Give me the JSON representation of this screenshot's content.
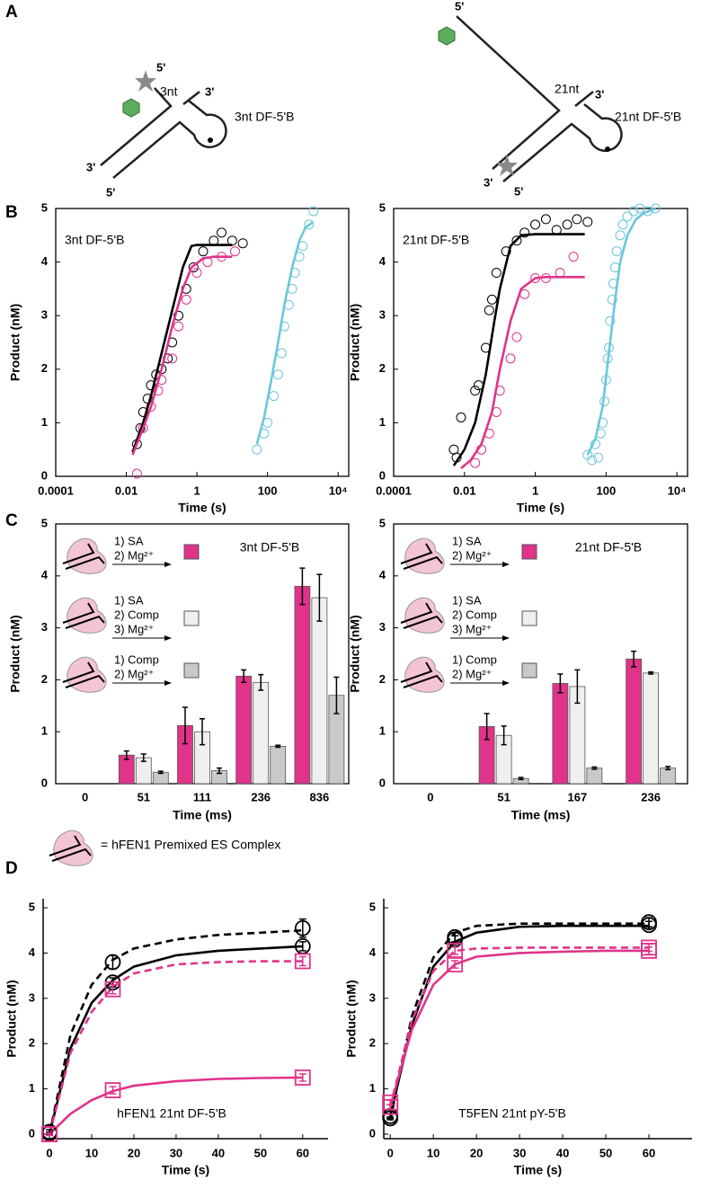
{
  "panel_labels": [
    "A",
    "B",
    "C",
    "D"
  ],
  "diagrams": [
    {
      "labels": [
        "5'",
        "3nt",
        "3'",
        "3nt DF-5'B",
        "3'",
        "5'"
      ]
    },
    {
      "labels": [
        "5'",
        "21nt",
        "3'",
        "21nt DF-5'B",
        "3'",
        "5'"
      ]
    }
  ],
  "footnote": "= hFEN1 Premixed ES Complex",
  "chart_data": [
    {
      "type": "scatter",
      "xscale": "log",
      "annotation": "3nt DF-5'B",
      "xlabel": "Time (s)",
      "ylabel": "Product (nM)",
      "xlim": [
        0.0001,
        20000
      ],
      "ylim": [
        0,
        5
      ],
      "xticks": [
        0.0001,
        0.01,
        1,
        100,
        {
          "value": 10000,
          "label": "10⁴"
        }
      ],
      "yticks": [
        0,
        1,
        2,
        3,
        4,
        5
      ],
      "series": [
        {
          "mode": "markers",
          "marker": "circle",
          "color": "#000000",
          "x": [
            0.02,
            0.025,
            0.03,
            0.04,
            0.05,
            0.07,
            0.1,
            0.15,
            0.2,
            0.3,
            0.5,
            0.8,
            1.5,
            3,
            5,
            10,
            20
          ],
          "values": [
            0.6,
            0.9,
            1.2,
            1.45,
            1.7,
            1.9,
            2.0,
            2.2,
            2.5,
            3.0,
            3.5,
            3.9,
            4.2,
            4.4,
            4.55,
            4.4,
            4.35
          ]
        },
        {
          "mode": "markers",
          "marker": "circle",
          "color": "#e0338a",
          "x": [
            0.02,
            0.03,
            0.05,
            0.08,
            0.1,
            0.2,
            0.3,
            0.5,
            1,
            2,
            5,
            12
          ],
          "values": [
            0.05,
            0.9,
            1.3,
            1.6,
            1.8,
            2.2,
            2.8,
            3.3,
            3.8,
            4.0,
            4.1,
            4.2
          ]
        },
        {
          "mode": "markers",
          "marker": "circle",
          "color": "#6cc6dc",
          "x": [
            50,
            80,
            100,
            150,
            200,
            250,
            300,
            400,
            500,
            600,
            800,
            1000,
            1500,
            2000
          ],
          "values": [
            0.5,
            0.8,
            1.0,
            1.5,
            1.9,
            2.3,
            2.8,
            3.2,
            3.5,
            3.8,
            4.1,
            4.3,
            4.7,
            4.95
          ]
        },
        {
          "mode": "line",
          "color": "#000000",
          "x": [
            0.015,
            0.03,
            0.05,
            0.1,
            0.2,
            0.4,
            0.7,
            1,
            2,
            10
          ],
          "values": [
            0.45,
            1.0,
            1.5,
            2.3,
            3.1,
            3.9,
            4.3,
            4.32,
            4.32,
            4.32
          ]
        },
        {
          "mode": "line",
          "color": "#e0338a",
          "x": [
            0.015,
            0.03,
            0.05,
            0.1,
            0.2,
            0.4,
            0.7,
            1.5,
            3,
            10
          ],
          "values": [
            0.4,
            0.9,
            1.3,
            2.0,
            2.8,
            3.5,
            3.9,
            4.07,
            4.1,
            4.1
          ]
        },
        {
          "mode": "line",
          "color": "#6cc6dc",
          "x": [
            50,
            80,
            120,
            200,
            300,
            500,
            800,
            1200,
            2000
          ],
          "values": [
            0.6,
            1.1,
            1.7,
            2.5,
            3.2,
            3.9,
            4.4,
            4.65,
            4.75
          ]
        }
      ]
    },
    {
      "type": "scatter",
      "xscale": "log",
      "annotation": "21nt DF-5'B",
      "xlabel": "Time (s)",
      "ylabel": "Product (nM)",
      "xlim": [
        0.0001,
        20000
      ],
      "ylim": [
        0,
        5
      ],
      "xticks": [
        0.0001,
        0.01,
        1,
        100,
        {
          "value": 10000,
          "label": "10⁴"
        }
      ],
      "yticks": [
        0,
        1,
        2,
        3,
        4,
        5
      ],
      "series": [
        {
          "mode": "markers",
          "marker": "circle",
          "color": "#000000",
          "x": [
            0.005,
            0.006,
            0.008,
            0.02,
            0.025,
            0.04,
            0.05,
            0.06,
            0.08,
            0.15,
            0.3,
            0.5,
            1,
            2,
            4,
            8,
            15,
            30
          ],
          "values": [
            0.5,
            0.35,
            1.1,
            1.6,
            1.7,
            2.4,
            3.1,
            3.3,
            3.8,
            4.2,
            4.4,
            4.55,
            4.7,
            4.8,
            4.6,
            4.7,
            4.8,
            4.75
          ]
        },
        {
          "mode": "markers",
          "marker": "circle",
          "color": "#e0338a",
          "x": [
            0.02,
            0.03,
            0.05,
            0.08,
            0.1,
            0.2,
            0.3,
            0.5,
            1,
            2,
            5,
            12
          ],
          "values": [
            0.25,
            0.5,
            0.8,
            1.2,
            1.6,
            2.2,
            2.6,
            3.4,
            3.7,
            3.7,
            3.8,
            4.1
          ]
        },
        {
          "mode": "markers",
          "marker": "circle",
          "color": "#6cc6dc",
          "x": [
            30,
            40,
            50,
            60,
            70,
            80,
            90,
            100,
            110,
            120,
            130,
            150,
            160,
            180,
            200,
            250,
            300,
            400,
            600,
            900,
            1500,
            2500
          ],
          "values": [
            0.4,
            0.3,
            0.6,
            0.35,
            0.8,
            1.0,
            1.4,
            1.8,
            2.2,
            2.4,
            2.9,
            3.3,
            3.6,
            3.9,
            4.2,
            4.5,
            4.7,
            4.85,
            4.95,
            5.0,
            4.95,
            5.0
          ]
        },
        {
          "mode": "line",
          "color": "#000000",
          "x": [
            0.005,
            0.01,
            0.02,
            0.04,
            0.07,
            0.1,
            0.2,
            0.4,
            1,
            25
          ],
          "values": [
            0.2,
            0.5,
            1.0,
            1.9,
            2.9,
            3.5,
            4.3,
            4.5,
            4.52,
            4.52
          ]
        },
        {
          "mode": "line",
          "color": "#e0338a",
          "x": [
            0.008,
            0.015,
            0.03,
            0.06,
            0.1,
            0.2,
            0.4,
            1,
            2,
            25
          ],
          "values": [
            0.15,
            0.3,
            0.6,
            1.2,
            2.0,
            2.9,
            3.5,
            3.7,
            3.72,
            3.72
          ]
        },
        {
          "mode": "line",
          "color": "#6cc6dc",
          "x": [
            30,
            50,
            80,
            120,
            180,
            250,
            400,
            700,
            1200,
            2500
          ],
          "values": [
            0.4,
            0.7,
            1.3,
            2.3,
            3.3,
            4.0,
            4.5,
            4.8,
            4.92,
            5.0
          ]
        }
      ]
    },
    {
      "type": "bar",
      "annotation": "3nt DF-5'B",
      "xlabel": "Time (ms)",
      "ylabel": "Product (nM)",
      "ylim": [
        0,
        5
      ],
      "yticks": [
        0,
        1,
        2,
        3,
        4,
        5
      ],
      "categories": [
        "0",
        "51",
        "111",
        "236",
        "836"
      ],
      "series": [
        {
          "name": [
            "1) SA",
            "2) Mg²⁺"
          ],
          "color": "#e0338a",
          "values": [
            null,
            0.55,
            1.12,
            2.07,
            3.8
          ],
          "errors": [
            null,
            0.08,
            0.35,
            0.12,
            0.35
          ]
        },
        {
          "name": [
            "1) SA",
            "2) Comp",
            "3) Mg²⁺"
          ],
          "color": "#efefef",
          "values": [
            null,
            0.5,
            1.0,
            1.95,
            3.58
          ],
          "errors": [
            null,
            0.07,
            0.25,
            0.15,
            0.45
          ]
        },
        {
          "name": [
            "1) Comp",
            "2) Mg²⁺"
          ],
          "color": "#c9c9c9",
          "values": [
            null,
            0.22,
            0.25,
            0.72,
            1.7
          ],
          "errors": [
            null,
            0.02,
            0.05,
            0.02,
            0.35
          ]
        }
      ]
    },
    {
      "type": "bar",
      "annotation": "21nt DF-5'B",
      "xlabel": "Time (ms)",
      "ylabel": "Product (nM)",
      "ylim": [
        0,
        5
      ],
      "yticks": [
        0,
        1,
        2,
        3,
        4,
        5
      ],
      "categories": [
        "0",
        "51",
        "167",
        "236"
      ],
      "series": [
        {
          "name": [
            "1) SA",
            "2) Mg²⁺"
          ],
          "color": "#e0338a",
          "values": [
            null,
            1.1,
            1.93,
            2.4
          ],
          "errors": [
            null,
            0.25,
            0.18,
            0.15
          ]
        },
        {
          "name": [
            "1) SA",
            "2) Comp",
            "3) Mg²⁺"
          ],
          "color": "#efefef",
          "values": [
            null,
            0.93,
            1.87,
            2.13
          ],
          "errors": [
            null,
            0.18,
            0.32,
            0.02
          ]
        },
        {
          "name": [
            "1) Comp",
            "2) Mg²⁺"
          ],
          "color": "#c9c9c9",
          "values": [
            null,
            0.1,
            0.3,
            0.3
          ],
          "errors": [
            null,
            0.02,
            0.02,
            0.03
          ]
        }
      ]
    },
    {
      "type": "line",
      "annotation": "hFEN1 21nt DF-5'B",
      "xlabel": "Time (s)",
      "ylabel": "Product (nM)",
      "xlim": [
        -1.5,
        66
      ],
      "ylim": [
        -0.1,
        5.2
      ],
      "xticks": [
        0,
        10,
        20,
        30,
        40,
        50,
        60
      ],
      "yticks": [
        0,
        1,
        2,
        3,
        4,
        5
      ],
      "series": [
        {
          "mode": "line",
          "dash": true,
          "color": "#000000",
          "x": [
            0,
            5,
            10,
            15,
            20,
            30,
            40,
            50,
            60
          ],
          "values": [
            0,
            2.2,
            3.3,
            3.85,
            4.1,
            4.3,
            4.4,
            4.45,
            4.5
          ]
        },
        {
          "mode": "line",
          "color": "#000000",
          "x": [
            0,
            5,
            10,
            15,
            20,
            30,
            40,
            50,
            60
          ],
          "values": [
            0,
            1.9,
            2.9,
            3.4,
            3.7,
            3.95,
            4.05,
            4.1,
            4.15
          ]
        },
        {
          "mode": "line",
          "dash": true,
          "color": "#e0338a",
          "x": [
            0,
            5,
            10,
            15,
            20,
            30,
            40,
            50,
            60
          ],
          "values": [
            0,
            1.8,
            2.7,
            3.25,
            3.55,
            3.75,
            3.8,
            3.82,
            3.82
          ]
        },
        {
          "mode": "line",
          "color": "#e0338a",
          "x": [
            0,
            5,
            10,
            15,
            20,
            30,
            40,
            50,
            60
          ],
          "values": [
            0,
            0.45,
            0.75,
            0.95,
            1.07,
            1.17,
            1.22,
            1.24,
            1.25
          ]
        },
        {
          "mode": "markers",
          "marker": "circle",
          "color": "#000000",
          "x": [
            0,
            15,
            60
          ],
          "values": [
            0.05,
            3.8,
            4.55
          ],
          "errors": [
            0.05,
            0.15,
            0.2
          ]
        },
        {
          "mode": "markers",
          "marker": "circle",
          "color": "#000000",
          "x": [
            0,
            15,
            60
          ],
          "values": [
            0.02,
            3.35,
            4.15
          ],
          "errors": [
            0.03,
            0.1,
            0.1
          ]
        },
        {
          "mode": "markers",
          "marker": "square",
          "color": "#e0338a",
          "x": [
            0,
            15,
            60
          ],
          "values": [
            0,
            3.2,
            3.82
          ],
          "errors": [
            0.03,
            0.1,
            0.1
          ]
        },
        {
          "mode": "markers",
          "marker": "square",
          "color": "#e0338a",
          "x": [
            0,
            15,
            60
          ],
          "values": [
            0,
            0.97,
            1.25
          ],
          "errors": [
            0.02,
            0.08,
            0.08
          ]
        }
      ]
    },
    {
      "type": "line",
      "annotation": "T5FEN 21nt pY-5'B",
      "xlabel": "Time (s)",
      "ylabel": "Product (nM)",
      "xlim": [
        -1.5,
        70
      ],
      "ylim": [
        -0.1,
        5.2
      ],
      "xticks": [
        0,
        10,
        20,
        30,
        40,
        50,
        60
      ],
      "yticks": [
        0,
        1,
        2,
        3,
        4,
        5
      ],
      "series": [
        {
          "mode": "line",
          "dash": true,
          "color": "#000000",
          "x": [
            0,
            5,
            10,
            15,
            20,
            30,
            40,
            50,
            60
          ],
          "values": [
            0.3,
            2.6,
            3.9,
            4.45,
            4.6,
            4.65,
            4.65,
            4.65,
            4.65
          ]
        },
        {
          "mode": "line",
          "color": "#000000",
          "x": [
            0,
            5,
            10,
            15,
            20,
            30,
            40,
            50,
            60
          ],
          "values": [
            0.4,
            2.4,
            3.7,
            4.25,
            4.45,
            4.58,
            4.6,
            4.6,
            4.6
          ]
        },
        {
          "mode": "line",
          "dash": true,
          "color": "#e0338a",
          "x": [
            0,
            5,
            10,
            15,
            20,
            30,
            40,
            50,
            60
          ],
          "values": [
            0.6,
            2.5,
            3.6,
            4.05,
            4.1,
            4.12,
            4.12,
            4.12,
            4.12
          ]
        },
        {
          "mode": "line",
          "color": "#e0338a",
          "x": [
            0,
            5,
            10,
            15,
            20,
            30,
            40,
            50,
            60
          ],
          "values": [
            0.6,
            2.3,
            3.3,
            3.75,
            3.92,
            4.0,
            4.03,
            4.05,
            4.05
          ]
        },
        {
          "mode": "markers",
          "marker": "circle",
          "color": "#000000",
          "x": [
            0,
            15,
            60
          ],
          "values": [
            0.4,
            4.35,
            4.68
          ],
          "errors": [
            0.05,
            0.1,
            0.1
          ]
        },
        {
          "mode": "markers",
          "marker": "circle",
          "color": "#000000",
          "x": [
            0,
            15,
            60
          ],
          "values": [
            0.35,
            4.3,
            4.62
          ],
          "errors": [
            0.03,
            0.08,
            0.08
          ]
        },
        {
          "mode": "markers",
          "marker": "square",
          "color": "#e0338a",
          "x": [
            0,
            15,
            60
          ],
          "values": [
            0.6,
            4.05,
            4.12
          ],
          "errors": [
            0.05,
            0.08,
            0.08
          ]
        },
        {
          "mode": "markers",
          "marker": "square",
          "color": "#e0338a",
          "x": [
            0,
            15,
            60
          ],
          "values": [
            0.7,
            3.75,
            4.05
          ],
          "errors": [
            0.05,
            0.08,
            0.08
          ]
        }
      ]
    }
  ]
}
